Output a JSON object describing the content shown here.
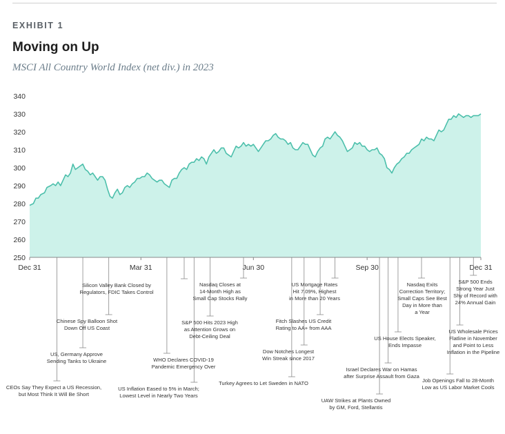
{
  "header": {
    "exhibit": "EXHIBIT 1",
    "title": "Moving on Up",
    "subtitle": "MSCI All Country World Index (net div.) in 2023"
  },
  "colors": {
    "area_fill": "#cdf2ea",
    "line": "#4cbfab",
    "axis": "#888888"
  },
  "chart_data": {
    "type": "area",
    "title": "Moving on Up",
    "subtitle": "MSCI All Country World Index (net div.) in 2023",
    "xlabel": "",
    "ylabel": "",
    "ylim": [
      250,
      340
    ],
    "yticks": [
      250,
      260,
      270,
      280,
      290,
      300,
      310,
      320,
      330,
      340
    ],
    "xlim": [
      0,
      365
    ],
    "xticks": [
      {
        "day": 0,
        "label": "Dec 31"
      },
      {
        "day": 90,
        "label": "Mar 31"
      },
      {
        "day": 181,
        "label": "Jun 30"
      },
      {
        "day": 273,
        "label": "Sep 30"
      },
      {
        "day": 365,
        "label": "Dec 31"
      }
    ],
    "grid": false,
    "series": [
      {
        "values": [
          [
            0,
            279
          ],
          [
            3,
            280
          ],
          [
            5,
            283
          ],
          [
            7,
            283
          ],
          [
            9,
            285
          ],
          [
            12,
            286
          ],
          [
            14,
            289
          ],
          [
            17,
            290
          ],
          [
            19,
            291
          ],
          [
            21,
            290
          ],
          [
            23,
            292
          ],
          [
            25,
            290
          ],
          [
            27,
            293
          ],
          [
            29,
            296
          ],
          [
            31,
            295
          ],
          [
            33,
            297
          ],
          [
            35,
            302
          ],
          [
            37,
            299
          ],
          [
            39,
            300
          ],
          [
            41,
            301
          ],
          [
            43,
            302
          ],
          [
            45,
            299
          ],
          [
            47,
            298
          ],
          [
            49,
            296
          ],
          [
            51,
            297
          ],
          [
            53,
            295
          ],
          [
            55,
            293
          ],
          [
            57,
            295
          ],
          [
            59,
            295
          ],
          [
            61,
            293
          ],
          [
            63,
            288
          ],
          [
            65,
            284
          ],
          [
            67,
            283
          ],
          [
            69,
            286
          ],
          [
            71,
            288
          ],
          [
            73,
            285
          ],
          [
            75,
            286
          ],
          [
            77,
            289
          ],
          [
            79,
            290
          ],
          [
            81,
            289
          ],
          [
            83,
            291
          ],
          [
            85,
            292
          ],
          [
            87,
            294
          ],
          [
            89,
            294
          ],
          [
            91,
            295
          ],
          [
            93,
            295
          ],
          [
            95,
            297
          ],
          [
            97,
            296
          ],
          [
            99,
            294
          ],
          [
            101,
            293
          ],
          [
            103,
            292
          ],
          [
            105,
            293
          ],
          [
            107,
            293
          ],
          [
            109,
            291
          ],
          [
            111,
            290
          ],
          [
            113,
            289
          ],
          [
            115,
            293
          ],
          [
            117,
            294
          ],
          [
            119,
            294
          ],
          [
            121,
            297
          ],
          [
            123,
            299
          ],
          [
            125,
            300
          ],
          [
            127,
            299
          ],
          [
            129,
            302
          ],
          [
            131,
            303
          ],
          [
            133,
            303
          ],
          [
            135,
            305
          ],
          [
            137,
            304
          ],
          [
            139,
            306
          ],
          [
            141,
            305
          ],
          [
            143,
            302
          ],
          [
            145,
            306
          ],
          [
            147,
            308
          ],
          [
            149,
            310
          ],
          [
            151,
            308
          ],
          [
            153,
            309
          ],
          [
            155,
            311
          ],
          [
            157,
            311
          ],
          [
            159,
            308
          ],
          [
            161,
            307
          ],
          [
            163,
            306
          ],
          [
            165,
            309
          ],
          [
            167,
            312
          ],
          [
            169,
            311
          ],
          [
            171,
            312
          ],
          [
            173,
            314
          ],
          [
            175,
            312
          ],
          [
            177,
            313
          ],
          [
            179,
            312
          ],
          [
            181,
            313
          ],
          [
            183,
            311
          ],
          [
            185,
            309
          ],
          [
            187,
            311
          ],
          [
            189,
            313
          ],
          [
            191,
            315
          ],
          [
            193,
            315
          ],
          [
            195,
            316
          ],
          [
            197,
            318
          ],
          [
            199,
            319
          ],
          [
            201,
            317
          ],
          [
            203,
            316
          ],
          [
            205,
            316
          ],
          [
            207,
            315
          ],
          [
            209,
            313
          ],
          [
            211,
            314
          ],
          [
            213,
            311
          ],
          [
            215,
            310
          ],
          [
            217,
            310
          ],
          [
            219,
            312
          ],
          [
            221,
            314
          ],
          [
            223,
            313
          ],
          [
            225,
            313
          ],
          [
            227,
            310
          ],
          [
            229,
            307
          ],
          [
            231,
            306
          ],
          [
            233,
            309
          ],
          [
            235,
            311
          ],
          [
            237,
            312
          ],
          [
            239,
            316
          ],
          [
            241,
            317
          ],
          [
            243,
            316
          ],
          [
            245,
            318
          ],
          [
            247,
            320
          ],
          [
            249,
            318
          ],
          [
            251,
            317
          ],
          [
            253,
            315
          ],
          [
            255,
            312
          ],
          [
            257,
            309
          ],
          [
            259,
            310
          ],
          [
            261,
            311
          ],
          [
            263,
            314
          ],
          [
            265,
            313
          ],
          [
            267,
            314
          ],
          [
            269,
            312
          ],
          [
            271,
            312
          ],
          [
            273,
            310
          ],
          [
            275,
            309
          ],
          [
            277,
            310
          ],
          [
            279,
            310
          ],
          [
            281,
            311
          ],
          [
            283,
            308
          ],
          [
            285,
            307
          ],
          [
            287,
            305
          ],
          [
            289,
            300
          ],
          [
            291,
            299
          ],
          [
            293,
            297
          ],
          [
            295,
            300
          ],
          [
            297,
            302
          ],
          [
            299,
            303
          ],
          [
            301,
            305
          ],
          [
            303,
            306
          ],
          [
            305,
            308
          ],
          [
            307,
            308
          ],
          [
            309,
            310
          ],
          [
            311,
            311
          ],
          [
            313,
            312
          ],
          [
            315,
            313
          ],
          [
            317,
            316
          ],
          [
            319,
            315
          ],
          [
            321,
            317
          ],
          [
            323,
            316
          ],
          [
            325,
            316
          ],
          [
            327,
            315
          ],
          [
            329,
            318
          ],
          [
            331,
            321
          ],
          [
            333,
            320
          ],
          [
            335,
            321
          ],
          [
            337,
            324
          ],
          [
            339,
            327
          ],
          [
            341,
            327
          ],
          [
            343,
            329
          ],
          [
            345,
            328
          ],
          [
            347,
            330
          ],
          [
            349,
            329
          ],
          [
            351,
            328
          ],
          [
            353,
            329
          ],
          [
            355,
            329
          ],
          [
            357,
            328
          ],
          [
            359,
            329
          ],
          [
            361,
            329
          ],
          [
            363,
            329
          ],
          [
            365,
            330
          ]
        ]
      }
    ],
    "annotations": [
      {
        "day": 22,
        "lines": [
          "CEOs Say They Expect a US Recession,",
          "but Most Think It Will Be Short"
        ]
      },
      {
        "day": 43,
        "lines": [
          "US, Germany Approve",
          "Sending Tanks to Ukraine"
        ]
      },
      {
        "day": 64,
        "lines": [
          "Chinese Spy Balloon Shot",
          "Down Off US Coast"
        ]
      },
      {
        "day": 125,
        "lines": [
          "Silicon Valley Bank Closed by",
          "Regulators, FDIC Takes Control"
        ]
      },
      {
        "day": 133,
        "lines": [
          "US Inflation Eased to 5% in March;",
          "Lowest Level in Nearly Two Years"
        ]
      },
      {
        "day": 111,
        "lines": [
          "WHO Declares COVID-19",
          "Pandemic Emergency Over"
        ]
      },
      {
        "day": 146,
        "lines": [
          "S&P 500 Hits 2023 High",
          "as Attention Grows on",
          "Debt-Ceiling Deal"
        ]
      },
      {
        "day": 173,
        "lines": [
          "Nasdaq Closes at",
          "14-Month High as",
          "Small Cap Stocks Rally"
        ]
      },
      {
        "day": 212,
        "lines": [
          "Turkey Agrees to Let Sweden in NATO"
        ]
      },
      {
        "day": 222,
        "lines": [
          "Dow Notches Longest",
          "Win Streak since 2017"
        ]
      },
      {
        "day": 235,
        "lines": [
          "Fitch Slashes US Credit",
          "Rating to AA+ from AAA"
        ]
      },
      {
        "day": 247,
        "lines": [
          "US Mortgage Rates",
          "Hit 7.09%, Highest",
          "in More than 20 Years"
        ]
      },
      {
        "day": 283,
        "lines": [
          "UAW Strikes at Plants Owned",
          "by GM, Ford, Stellantis"
        ]
      },
      {
        "day": 290,
        "lines": [
          "Israel Declares War on Hamas",
          "after Surprise Assault from Gaza"
        ]
      },
      {
        "day": 298,
        "lines": [
          "US House Elects Speaker,",
          "Ends Impasse"
        ]
      },
      {
        "day": 317,
        "lines": [
          "Nasdaq Exits",
          "Correction Territory;",
          "Small Caps See Best",
          "Day in More than",
          "a Year"
        ]
      },
      {
        "day": 340,
        "lines": [
          "Job Openings Fall to 28-Month",
          "Low as US Labor Market Cools"
        ]
      },
      {
        "day": 348,
        "lines": [
          "US Wholesale Prices",
          "Flatline in November",
          "and Point to Less",
          "Inflation in the Pipeline"
        ]
      },
      {
        "day": 359,
        "lines": [
          "S&P 500 Ends",
          "Strong Year Just",
          "Shy of Record with",
          "24% Annual Gain"
        ]
      }
    ]
  }
}
